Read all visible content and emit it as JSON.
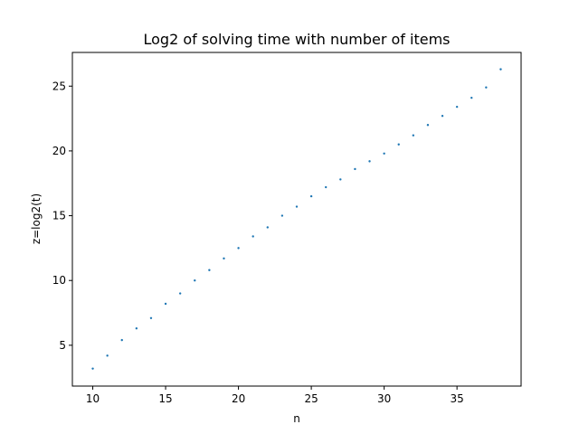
{
  "chart_data": {
    "type": "scatter",
    "title": "Log2 of solving time with number of items",
    "xlabel": "n",
    "ylabel": "z=log2(t)",
    "xlim": [
      8.6,
      39.4
    ],
    "ylim": [
      1.85,
      27.6
    ],
    "xticks": [
      10,
      15,
      20,
      25,
      30,
      35
    ],
    "yticks": [
      5,
      10,
      15,
      20,
      25
    ],
    "grid": false,
    "marker_color": "#1f77b4",
    "series": [
      {
        "x": [
          10,
          11,
          12,
          13,
          14,
          15,
          16,
          17,
          18,
          19,
          20,
          21,
          22,
          23,
          24,
          25,
          26,
          27,
          28,
          29,
          30,
          31,
          32,
          33,
          34,
          35,
          36,
          37,
          38
        ],
        "y": [
          3.2,
          4.2,
          5.4,
          6.3,
          7.1,
          8.2,
          9.0,
          10.0,
          10.8,
          11.7,
          12.5,
          13.4,
          14.1,
          15.0,
          15.7,
          16.5,
          17.2,
          17.8,
          18.6,
          19.2,
          19.8,
          20.5,
          21.2,
          22.0,
          22.7,
          23.4,
          24.1,
          24.9,
          26.3
        ]
      }
    ]
  }
}
